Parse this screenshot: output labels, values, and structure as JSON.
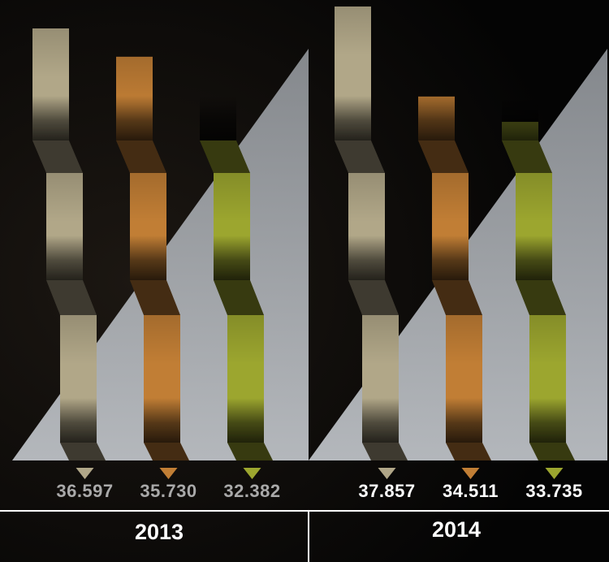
{
  "colors": {
    "background": "#050505",
    "series": [
      "#b1a788",
      "#c17e35",
      "#9ca62f"
    ],
    "label_2013": "#a9a9a9",
    "label_2014": "#ffffff"
  },
  "chart_data": {
    "type": "bar",
    "style": "pictorial stepped columns (unlabeled series, colour-coded with triangle markers)",
    "groups": [
      "2013",
      "2014"
    ],
    "series": [
      {
        "color": "#b1a788",
        "values": [
          36.597,
          37.857
        ],
        "labels": [
          "36.597",
          "37.857"
        ]
      },
      {
        "color": "#c17e35",
        "values": [
          35.73,
          34.511
        ],
        "labels": [
          "35.730",
          "34.511"
        ]
      },
      {
        "color": "#9ca62f",
        "values": [
          32.382,
          33.735
        ],
        "labels": [
          "32.382",
          "33.735"
        ]
      }
    ],
    "title": "",
    "xlabel": "",
    "ylabel": "",
    "legend": "none",
    "grid": false
  }
}
